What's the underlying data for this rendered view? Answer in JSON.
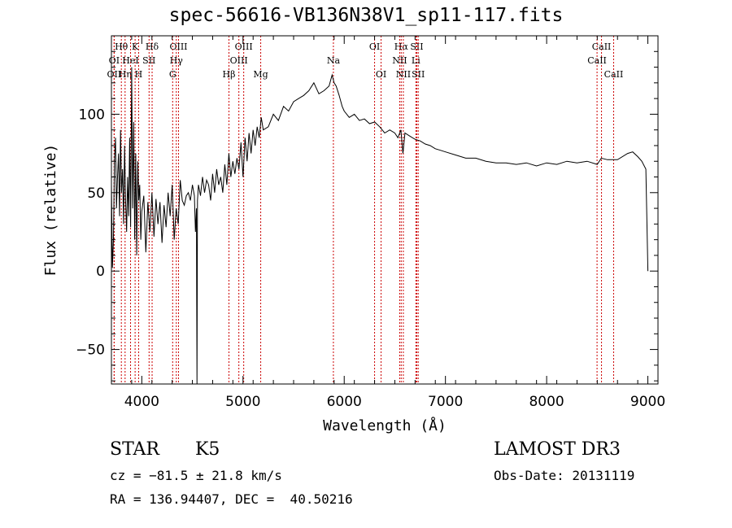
{
  "chart_data": {
    "type": "line",
    "title": "spec-56616-VB136N38V1_sp11-117.fits",
    "xlabel": "Wavelength (Å)",
    "ylabel": "Flux (relative)",
    "xlim": [
      3700,
      9100
    ],
    "ylim": [
      -72,
      150
    ],
    "x_ticks": [
      4000,
      5000,
      6000,
      7000,
      8000,
      9000
    ],
    "y_ticks": [
      -50,
      0,
      50,
      100
    ],
    "grid": false,
    "lines": [
      {
        "label": "Hθ",
        "x": 3798,
        "row": 0
      },
      {
        "label": "OII",
        "x": 3727,
        "row": 2
      },
      {
        "label": "OI",
        "x": 3727,
        "row": 1
      },
      {
        "label": "Hη",
        "x": 3835,
        "row": 2
      },
      {
        "label": "K",
        "x": 3934,
        "row": 0
      },
      {
        "label": "HeI",
        "x": 3889,
        "row": 1
      },
      {
        "label": "H",
        "x": 3969,
        "row": 2
      },
      {
        "label": "SII",
        "x": 4072,
        "row": 1
      },
      {
        "label": "Hδ",
        "x": 4102,
        "row": 0
      },
      {
        "label": "OIII",
        "x": 4363,
        "row": 0
      },
      {
        "label": "Hγ",
        "x": 4341,
        "row": 1
      },
      {
        "label": "G",
        "x": 4305,
        "row": 2
      },
      {
        "label": "Hβ",
        "x": 4861,
        "row": 2
      },
      {
        "label": "OIII",
        "x": 5007,
        "row": 0
      },
      {
        "label": "OIII",
        "x": 4959,
        "row": 1
      },
      {
        "label": "Mg",
        "x": 5175,
        "row": 2
      },
      {
        "label": "Na",
        "x": 5893,
        "row": 1
      },
      {
        "label": "OI",
        "x": 6300,
        "row": 0
      },
      {
        "label": "OI",
        "x": 6364,
        "row": 2
      },
      {
        "label": "Hα",
        "x": 6563,
        "row": 0
      },
      {
        "label": "NII",
        "x": 6548,
        "row": 1
      },
      {
        "label": "NII",
        "x": 6584,
        "row": 2
      },
      {
        "label": "SII",
        "x": 6717,
        "row": 0
      },
      {
        "label": "Li",
        "x": 6708,
        "row": 1
      },
      {
        "label": "SII",
        "x": 6731,
        "row": 2
      },
      {
        "label": "CaII",
        "x": 8542,
        "row": 0
      },
      {
        "label": "CaII",
        "x": 8498,
        "row": 1
      },
      {
        "label": "CaII",
        "x": 8662,
        "row": 2
      }
    ],
    "series": [
      {
        "name": "flux",
        "x": [
          3700,
          3710,
          3720,
          3730,
          3740,
          3750,
          3760,
          3770,
          3780,
          3790,
          3800,
          3810,
          3820,
          3830,
          3840,
          3850,
          3860,
          3870,
          3880,
          3890,
          3900,
          3910,
          3920,
          3930,
          3940,
          3950,
          3960,
          3970,
          3980,
          3990,
          4000,
          4020,
          4040,
          4060,
          4080,
          4100,
          4120,
          4140,
          4160,
          4180,
          4200,
          4220,
          4240,
          4260,
          4280,
          4300,
          4320,
          4340,
          4360,
          4380,
          4400,
          4420,
          4440,
          4460,
          4480,
          4500,
          4520,
          4530,
          4540,
          4545,
          4550,
          4560,
          4580,
          4600,
          4620,
          4640,
          4660,
          4680,
          4700,
          4720,
          4740,
          4760,
          4780,
          4800,
          4820,
          4840,
          4860,
          4880,
          4900,
          4920,
          4940,
          4960,
          4980,
          5000,
          5020,
          5040,
          5060,
          5080,
          5100,
          5120,
          5140,
          5160,
          5180,
          5200,
          5250,
          5300,
          5350,
          5400,
          5450,
          5500,
          5550,
          5600,
          5650,
          5700,
          5750,
          5800,
          5850,
          5880,
          5900,
          5920,
          5950,
          5980,
          6000,
          6050,
          6100,
          6150,
          6200,
          6250,
          6300,
          6350,
          6400,
          6450,
          6500,
          6530,
          6560,
          6580,
          6600,
          6650,
          6700,
          6750,
          6800,
          6850,
          6900,
          6950,
          7000,
          7100,
          7200,
          7300,
          7400,
          7500,
          7600,
          7700,
          7800,
          7900,
          8000,
          8100,
          8200,
          8300,
          8400,
          8500,
          8540,
          8600,
          8700,
          8800,
          8850,
          8900,
          8940,
          8980,
          9000
        ],
        "y": [
          55,
          2,
          20,
          70,
          85,
          40,
          60,
          75,
          35,
          90,
          50,
          65,
          30,
          80,
          45,
          25,
          60,
          35,
          85,
          28,
          130,
          40,
          95,
          20,
          75,
          10,
          70,
          45,
          55,
          20,
          38,
          48,
          12,
          44,
          25,
          50,
          22,
          46,
          30,
          44,
          18,
          42,
          28,
          50,
          35,
          55,
          20,
          40,
          30,
          58,
          45,
          42,
          48,
          50,
          45,
          55,
          48,
          25,
          40,
          -72,
          45,
          55,
          48,
          60,
          50,
          58,
          55,
          45,
          62,
          50,
          65,
          55,
          60,
          50,
          68,
          55,
          75,
          60,
          70,
          62,
          72,
          65,
          82,
          60,
          85,
          70,
          88,
          75,
          90,
          80,
          92,
          85,
          98,
          90,
          92,
          100,
          96,
          105,
          102,
          108,
          110,
          112,
          115,
          120,
          113,
          115,
          118,
          125,
          120,
          118,
          112,
          105,
          102,
          98,
          100,
          96,
          97,
          94,
          95,
          92,
          88,
          90,
          88,
          85,
          90,
          75,
          88,
          86,
          84,
          83,
          81,
          80,
          78,
          77,
          76,
          74,
          72,
          72,
          70,
          69,
          69,
          68,
          69,
          67,
          69,
          68,
          70,
          69,
          70,
          68,
          72,
          71,
          71,
          75,
          76,
          73,
          70,
          65,
          0
        ]
      }
    ]
  },
  "info": {
    "object_class": "STAR",
    "subclass": "K5",
    "survey": "LAMOST DR3",
    "cz_text": "cz = −81.5 ± 21.8 km/s",
    "obs_date_text": "Obs-Date: 20131119",
    "radec_text": "RA = 136.94407, DEC =  40.50216"
  }
}
